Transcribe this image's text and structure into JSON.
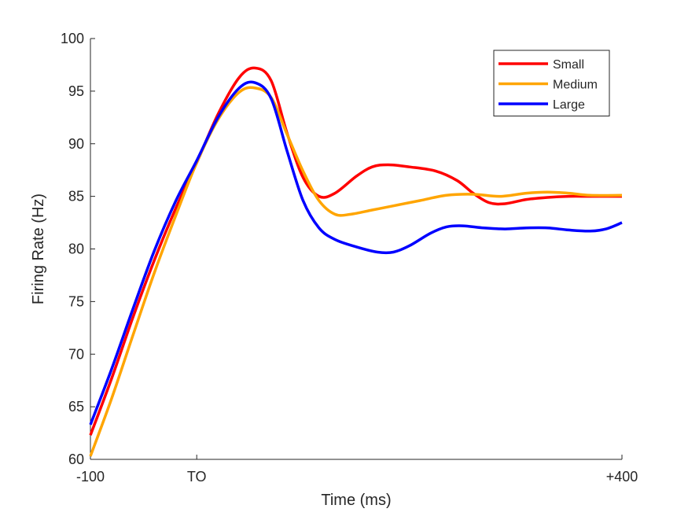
{
  "chart_data": {
    "type": "line",
    "xlabel": "Time (ms)",
    "ylabel": "Firing Rate (Hz)",
    "xlim": [
      -100,
      400
    ],
    "ylim": [
      60,
      100
    ],
    "x_ticks": [
      {
        "value": -100,
        "label": "-100"
      },
      {
        "value": 0,
        "label": "TO"
      },
      {
        "value": 400,
        "label": "+400"
      }
    ],
    "y_ticks": [
      60,
      65,
      70,
      75,
      80,
      85,
      90,
      95,
      100
    ],
    "grid": false,
    "legend_position": "top-right",
    "series": [
      {
        "name": "Small",
        "color": "#ff0000",
        "points": [
          [
            -100,
            62.3
          ],
          [
            -80,
            67.7
          ],
          [
            -60,
            73.5
          ],
          [
            -40,
            78.9
          ],
          [
            -20,
            83.8
          ],
          [
            0,
            88.2
          ],
          [
            20,
            92.8
          ],
          [
            40,
            96.3
          ],
          [
            55,
            97.2
          ],
          [
            70,
            96.0
          ],
          [
            85,
            91.0
          ],
          [
            100,
            86.8
          ],
          [
            115,
            85.0
          ],
          [
            130,
            85.3
          ],
          [
            150,
            86.9
          ],
          [
            165,
            87.8
          ],
          [
            180,
            88.0
          ],
          [
            200,
            87.8
          ],
          [
            225,
            87.4
          ],
          [
            245,
            86.5
          ],
          [
            260,
            85.3
          ],
          [
            275,
            84.4
          ],
          [
            290,
            84.3
          ],
          [
            310,
            84.7
          ],
          [
            330,
            84.9
          ],
          [
            350,
            85.0
          ],
          [
            370,
            85.0
          ],
          [
            400,
            85.0
          ]
        ]
      },
      {
        "name": "Medium",
        "color": "#ffa500",
        "points": [
          [
            -100,
            60.3
          ],
          [
            -80,
            65.8
          ],
          [
            -60,
            71.8
          ],
          [
            -40,
            77.7
          ],
          [
            -20,
            83.1
          ],
          [
            0,
            88.2
          ],
          [
            20,
            92.3
          ],
          [
            40,
            94.9
          ],
          [
            55,
            95.3
          ],
          [
            70,
            94.4
          ],
          [
            85,
            90.9
          ],
          [
            100,
            87.4
          ],
          [
            115,
            84.6
          ],
          [
            130,
            83.3
          ],
          [
            145,
            83.3
          ],
          [
            165,
            83.7
          ],
          [
            185,
            84.1
          ],
          [
            210,
            84.6
          ],
          [
            235,
            85.1
          ],
          [
            260,
            85.2
          ],
          [
            285,
            85.0
          ],
          [
            310,
            85.3
          ],
          [
            330,
            85.4
          ],
          [
            350,
            85.3
          ],
          [
            370,
            85.1
          ],
          [
            400,
            85.1
          ]
        ]
      },
      {
        "name": "Large",
        "color": "#0000ff",
        "points": [
          [
            -100,
            63.3
          ],
          [
            -80,
            68.6
          ],
          [
            -60,
            74.3
          ],
          [
            -40,
            79.8
          ],
          [
            -20,
            84.5
          ],
          [
            0,
            88.4
          ],
          [
            20,
            92.5
          ],
          [
            40,
            95.3
          ],
          [
            55,
            95.8
          ],
          [
            70,
            94.3
          ],
          [
            85,
            89.3
          ],
          [
            100,
            84.6
          ],
          [
            115,
            82.0
          ],
          [
            130,
            80.9
          ],
          [
            150,
            80.2
          ],
          [
            170,
            79.7
          ],
          [
            185,
            79.7
          ],
          [
            200,
            80.3
          ],
          [
            220,
            81.5
          ],
          [
            235,
            82.1
          ],
          [
            250,
            82.2
          ],
          [
            270,
            82.0
          ],
          [
            290,
            81.9
          ],
          [
            310,
            82.0
          ],
          [
            330,
            82.0
          ],
          [
            350,
            81.8
          ],
          [
            370,
            81.7
          ],
          [
            385,
            81.9
          ],
          [
            400,
            82.5
          ]
        ]
      }
    ]
  }
}
